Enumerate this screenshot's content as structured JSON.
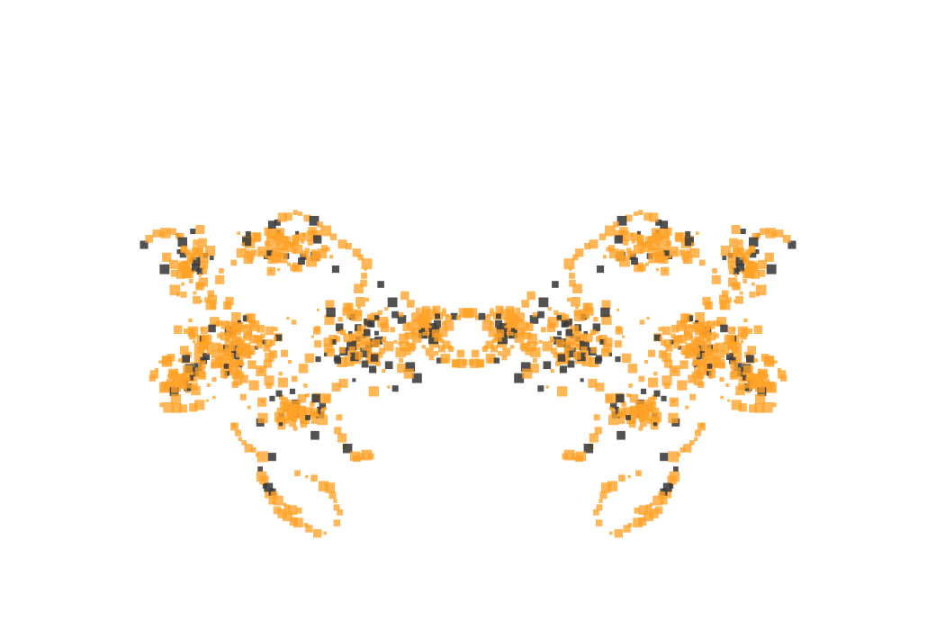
{
  "canvas": {
    "background": "#ffffff"
  },
  "artwork": {
    "subject": "symmetric-butterfly-particle-pattern",
    "symmetry": "mirror-vertical-axis",
    "colors": {
      "primary": "#ffa126",
      "secondary": "#3a3a3a"
    },
    "opacity": {
      "primary": 0.78,
      "secondary": 0.88
    },
    "density": {
      "random_fill": 620,
      "curve_trails": 24
    },
    "dark_ratio": 0.16,
    "seed": 7
  }
}
